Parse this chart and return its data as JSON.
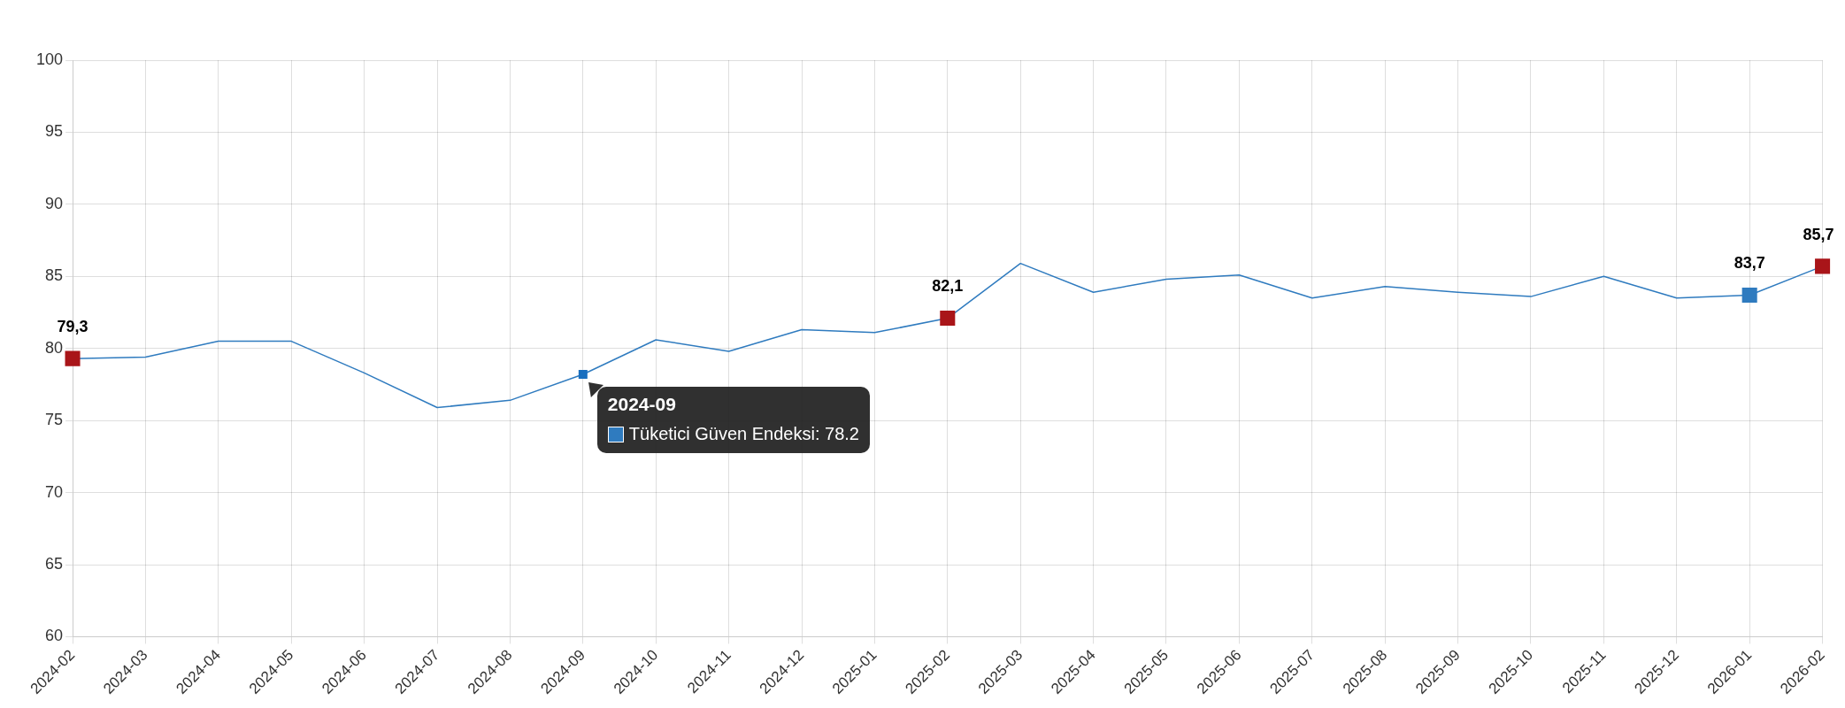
{
  "chart_data": {
    "type": "line",
    "categories": [
      "2024-02",
      "2024-03",
      "2024-04",
      "2024-05",
      "2024-06",
      "2024-07",
      "2024-08",
      "2024-09",
      "2024-10",
      "2024-11",
      "2024-12",
      "2025-01",
      "2025-02",
      "2025-03",
      "2025-04",
      "2025-05",
      "2025-06",
      "2025-07",
      "2025-08",
      "2025-09",
      "2025-10",
      "2025-11",
      "2025-12",
      "2026-01",
      "2026-02"
    ],
    "series": [
      {
        "color": "#2f7bbf",
        "values": [
          79.3,
          79.4,
          80.5,
          80.5,
          78.3,
          75.9,
          76.4,
          78.2,
          80.6,
          79.8,
          81.3,
          81.1,
          82.1,
          85.9,
          83.9,
          84.8,
          85.1,
          83.5,
          84.3,
          83.9,
          83.6,
          85.0,
          83.5,
          83.7,
          85.7
        ],
        "colors": [
          "#a91519",
          null,
          null,
          null,
          null,
          null,
          null,
          "#1a6fbf",
          null,
          null,
          null,
          null,
          "#a91519",
          null,
          null,
          null,
          null,
          null,
          null,
          null,
          null,
          null,
          null,
          "#2f7bbf",
          "#a91519"
        ],
        "value_labels": [
          "79,3",
          null,
          null,
          null,
          null,
          null,
          null,
          null,
          null,
          null,
          null,
          null,
          "82,1",
          null,
          null,
          null,
          null,
          null,
          null,
          null,
          null,
          null,
          null,
          "83,7",
          "85,7"
        ]
      }
    ],
    "ylim": [
      60,
      100
    ],
    "yticks": [
      60,
      65,
      70,
      75,
      80,
      85,
      90,
      95,
      100
    ],
    "grid": true,
    "legend": false,
    "line_style": "solid",
    "annotations": [
      {
        "text": "2024-09\nTüketici Güven Endeksi: 78.2",
        "x": "2024-09",
        "y": 78.2
      }
    ]
  }
}
